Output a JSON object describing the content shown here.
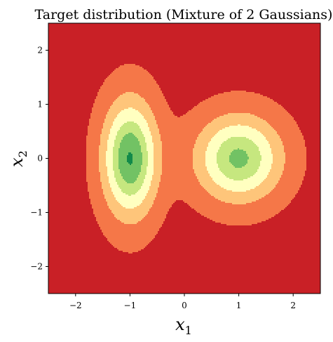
{
  "chart_data": {
    "type": "contour",
    "title": "Target distribution (Mixture of 2 Gaussians)",
    "xlabel": {
      "base": "x",
      "sub": "1"
    },
    "ylabel": {
      "base": "x",
      "sub": "2"
    },
    "xlim": [
      -2.5,
      2.5
    ],
    "ylim": [
      -2.5,
      2.5
    ],
    "xticks": [
      {
        "value": -2,
        "label": "−2"
      },
      {
        "value": -1,
        "label": "−1"
      },
      {
        "value": 0,
        "label": "0"
      },
      {
        "value": 1,
        "label": "1"
      },
      {
        "value": 2,
        "label": "2"
      }
    ],
    "yticks": [
      {
        "value": 2,
        "label": "2"
      },
      {
        "value": 1,
        "label": "1"
      },
      {
        "value": 0,
        "label": "0"
      },
      {
        "value": -1,
        "label": "−1"
      },
      {
        "value": -2,
        "label": "−2"
      }
    ],
    "background_color": "#c92026",
    "components": [
      {
        "mean": [
          -1,
          0
        ],
        "std": [
          0.35,
          0.75
        ]
      },
      {
        "mean": [
          1,
          0
        ],
        "std": [
          0.55,
          0.55
        ]
      }
    ],
    "contour_levels": [
      {
        "level": 0.02,
        "color": "#f57748"
      },
      {
        "level": 0.08,
        "color": "#fec57a"
      },
      {
        "level": 0.14,
        "color": "#ffffc0"
      },
      {
        "level": 0.2,
        "color": "#c6e77f"
      },
      {
        "level": 0.25,
        "color": "#72c264"
      },
      {
        "level": 0.3,
        "color": "#128a4a"
      }
    ]
  }
}
